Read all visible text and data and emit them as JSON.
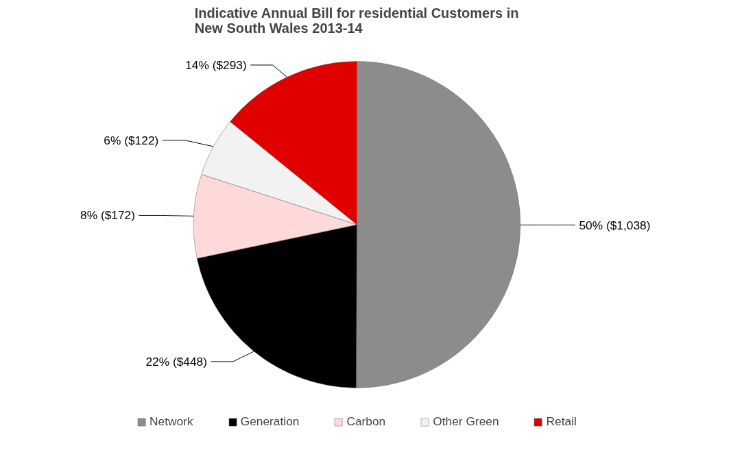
{
  "chart_data": {
    "type": "pie",
    "title": "Indicative Annual Bill for residential Customers in\nNew South Wales 2013-14",
    "categories": [
      "Network",
      "Generation",
      "Carbon",
      "Other Green",
      "Retail"
    ],
    "values": [
      1038,
      448,
      172,
      122,
      293
    ],
    "colors": [
      "#8c8c8c",
      "#000000",
      "#ffd9d9",
      "#f2f2f2",
      "#e00000"
    ],
    "value_labels": [
      "50% ($1,038)",
      "22% ($448)",
      "8% ($172)",
      "6% ($122)",
      "14% ($293)"
    ],
    "legend": "bottom"
  }
}
